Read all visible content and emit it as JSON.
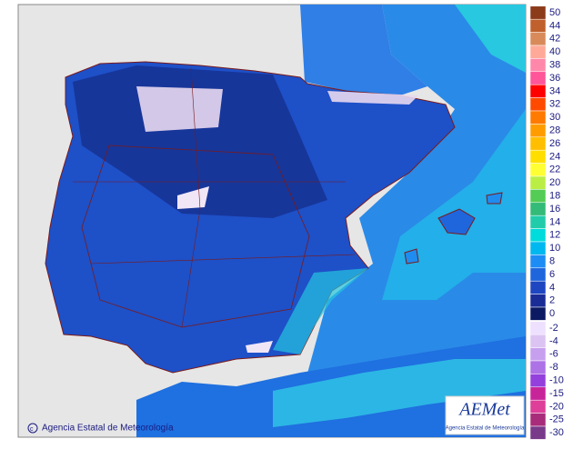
{
  "legend": {
    "above": [
      {
        "value": 50,
        "color": "#8b3a1a"
      },
      {
        "value": 44,
        "color": "#c0602c"
      },
      {
        "value": 42,
        "color": "#d98a5a"
      },
      {
        "value": 40,
        "color": "#ffaa99"
      },
      {
        "value": 38,
        "color": "#ff88aa"
      },
      {
        "value": 36,
        "color": "#ff5599"
      },
      {
        "value": 34,
        "color": "#ff0000"
      },
      {
        "value": 32,
        "color": "#ff4a00"
      },
      {
        "value": 30,
        "color": "#ff7a00"
      },
      {
        "value": 28,
        "color": "#ff9d00"
      },
      {
        "value": 26,
        "color": "#ffbf00"
      },
      {
        "value": 24,
        "color": "#ffde00"
      },
      {
        "value": 22,
        "color": "#ffff33"
      },
      {
        "value": 20,
        "color": "#bbee44"
      },
      {
        "value": 18,
        "color": "#55cc55"
      },
      {
        "value": 16,
        "color": "#33bb77"
      },
      {
        "value": 14,
        "color": "#22ccaa"
      },
      {
        "value": 12,
        "color": "#00dcdc"
      },
      {
        "value": 10,
        "color": "#00b8f0"
      },
      {
        "value": 8,
        "color": "#1e8cf5"
      },
      {
        "value": 6,
        "color": "#1f66dd"
      },
      {
        "value": 4,
        "color": "#1e46c0"
      },
      {
        "value": 2,
        "color": "#1a2c96"
      },
      {
        "value": 0,
        "color": "#0b1a62"
      }
    ],
    "below": [
      {
        "value": -2,
        "color": "#eee0ff"
      },
      {
        "value": -4,
        "color": "#dcc4f2"
      },
      {
        "value": -6,
        "color": "#c6a0ee"
      },
      {
        "value": -8,
        "color": "#ad72e6"
      },
      {
        "value": -10,
        "color": "#9440dc"
      },
      {
        "value": -15,
        "color": "#c8249a"
      },
      {
        "value": -20,
        "color": "#dd3f99"
      },
      {
        "value": -25,
        "color": "#a82c7a"
      },
      {
        "value": -30,
        "color": "#7a3a8a"
      }
    ]
  },
  "footer": {
    "copyright": "Agencia Estatal de Meteorología"
  },
  "logo": {
    "brand": "AEMet",
    "subtitle": "Agencia Estatal de Meteorología"
  }
}
